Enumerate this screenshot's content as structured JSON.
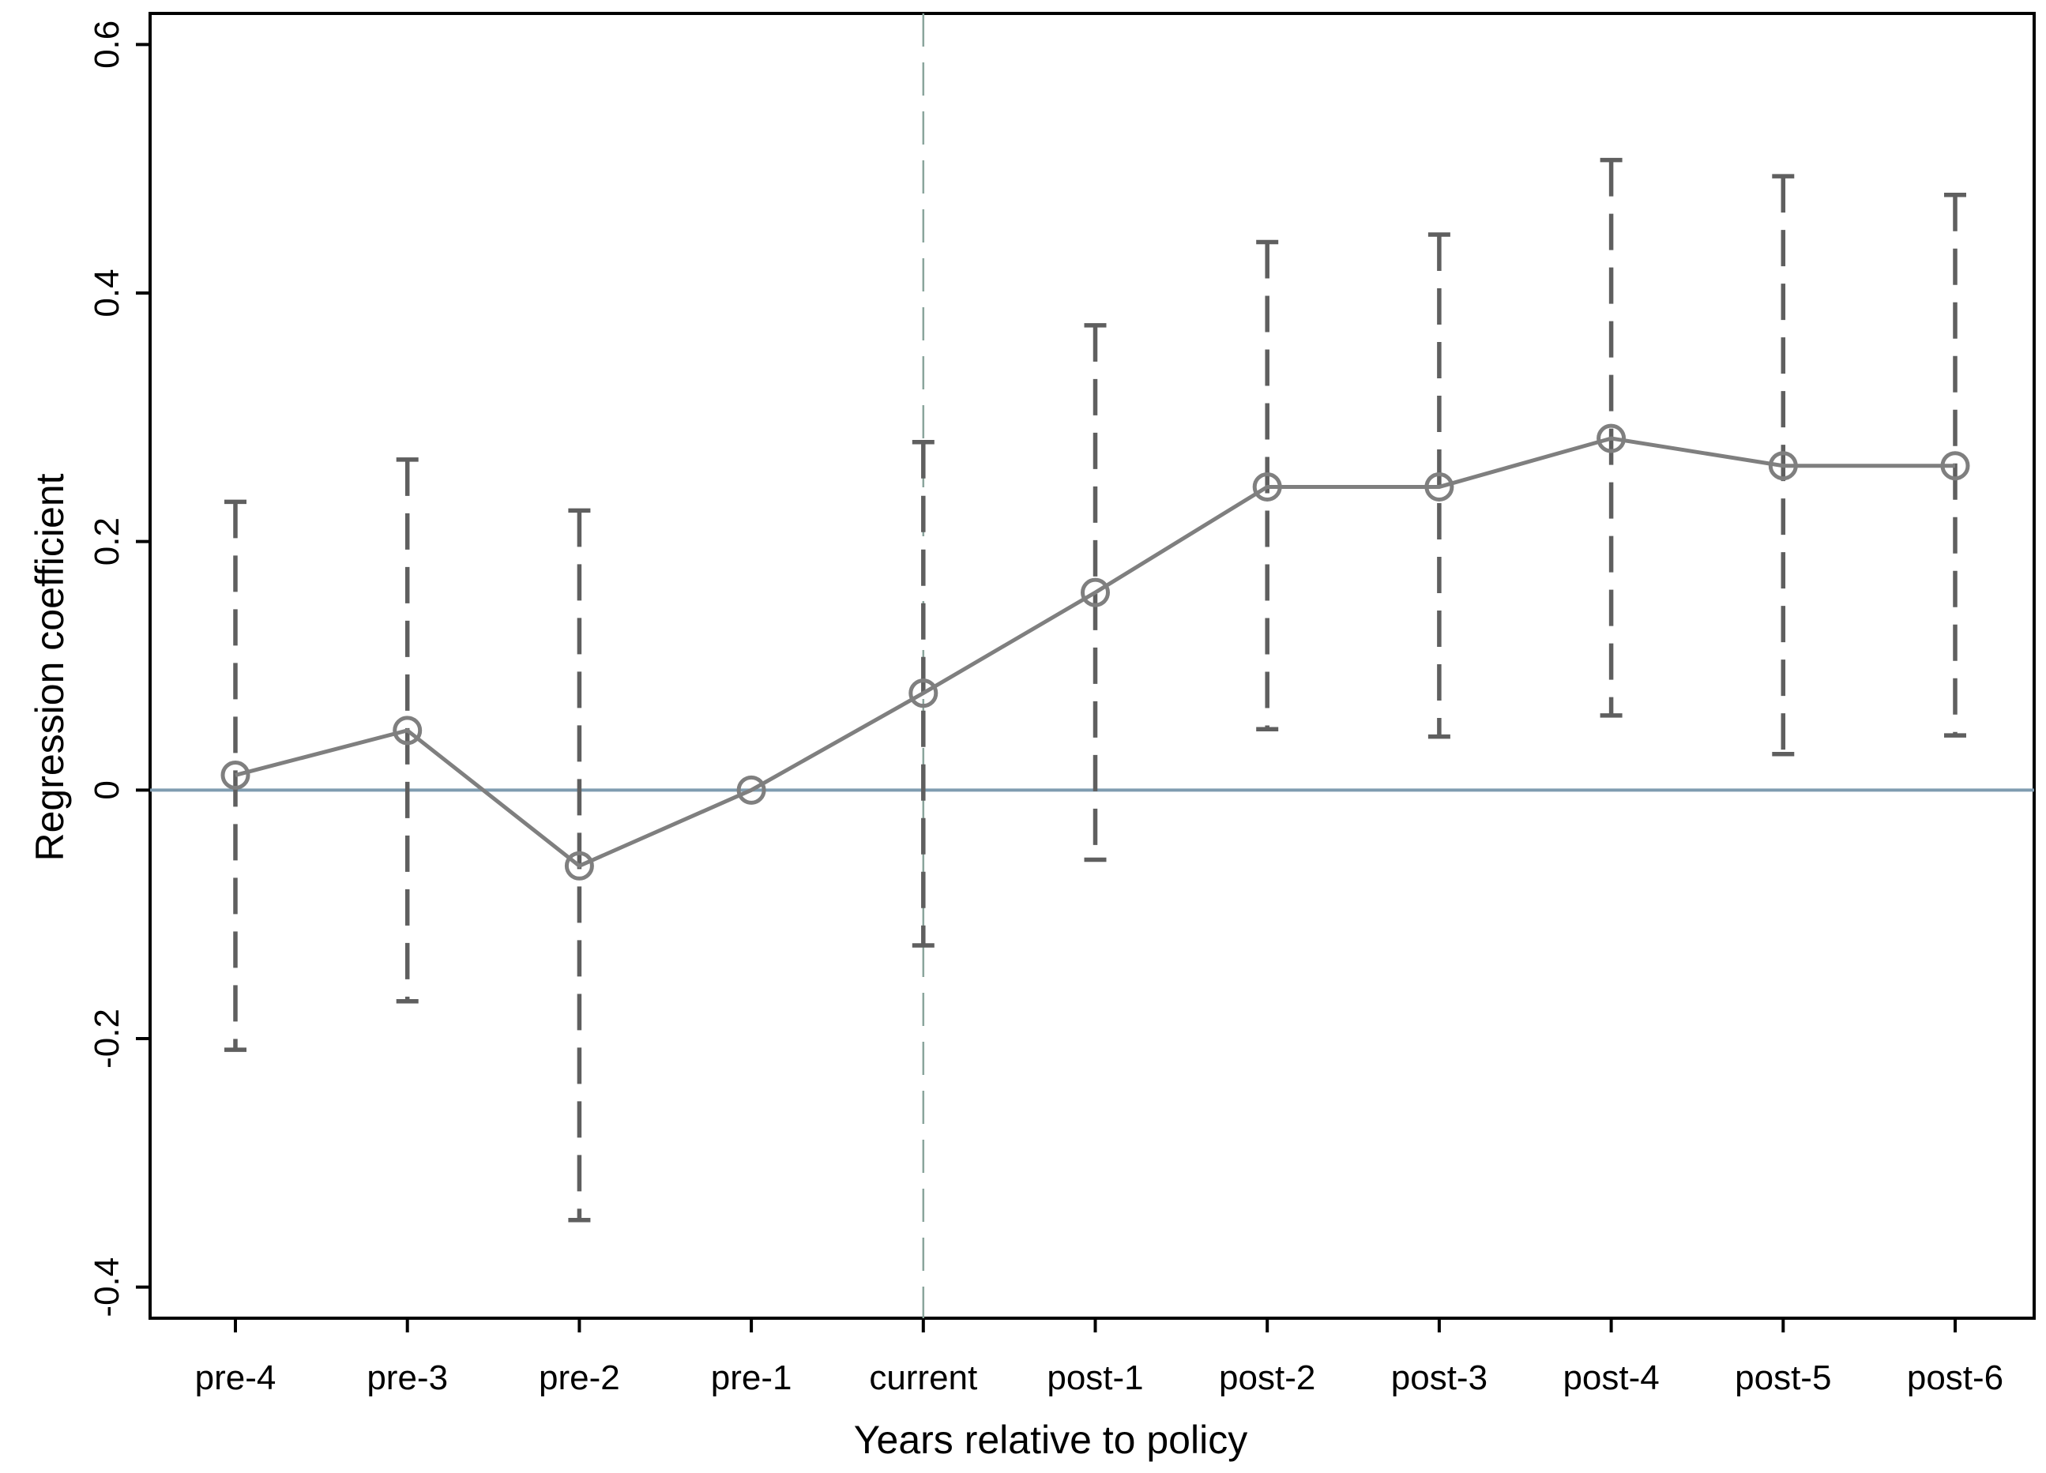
{
  "chart_data": {
    "type": "line",
    "xlabel": "Years relative to policy",
    "ylabel": "Regression coefficient",
    "categories": [
      "pre-4",
      "pre-3",
      "pre-2",
      "pre-1",
      "current",
      "post-1",
      "post-2",
      "post-3",
      "post-4",
      "post-5",
      "post-6"
    ],
    "series": [
      {
        "values": [
          0.012,
          0.048,
          -0.061,
          0.0,
          0.078,
          0.159,
          0.244,
          0.244,
          0.283,
          0.261,
          0.261
        ],
        "ci_lower": [
          -0.209,
          -0.17,
          -0.346,
          null,
          -0.125,
          -0.056,
          0.049,
          0.043,
          0.06,
          0.029,
          0.044
        ],
        "ci_upper": [
          0.232,
          0.266,
          0.225,
          null,
          0.28,
          0.374,
          0.441,
          0.447,
          0.507,
          0.494,
          0.479
        ]
      }
    ],
    "ylim": [
      -0.425,
      0.625
    ],
    "yticks": [
      -0.4,
      -0.2,
      0,
      0.2,
      0.4,
      0.6
    ],
    "ytick_labels": [
      "-0.4",
      "-0.2",
      "0",
      "0.2",
      "0.4",
      "0.6"
    ],
    "reference_line_y": 0,
    "reference_line_x": "current",
    "grid": false,
    "colors": {
      "series": "#7f7f7f",
      "error_bars": "#5f5f5f",
      "zero_line": "#7f9cb0",
      "vertical_line": "#8aa59c",
      "axis": "#000000"
    }
  }
}
